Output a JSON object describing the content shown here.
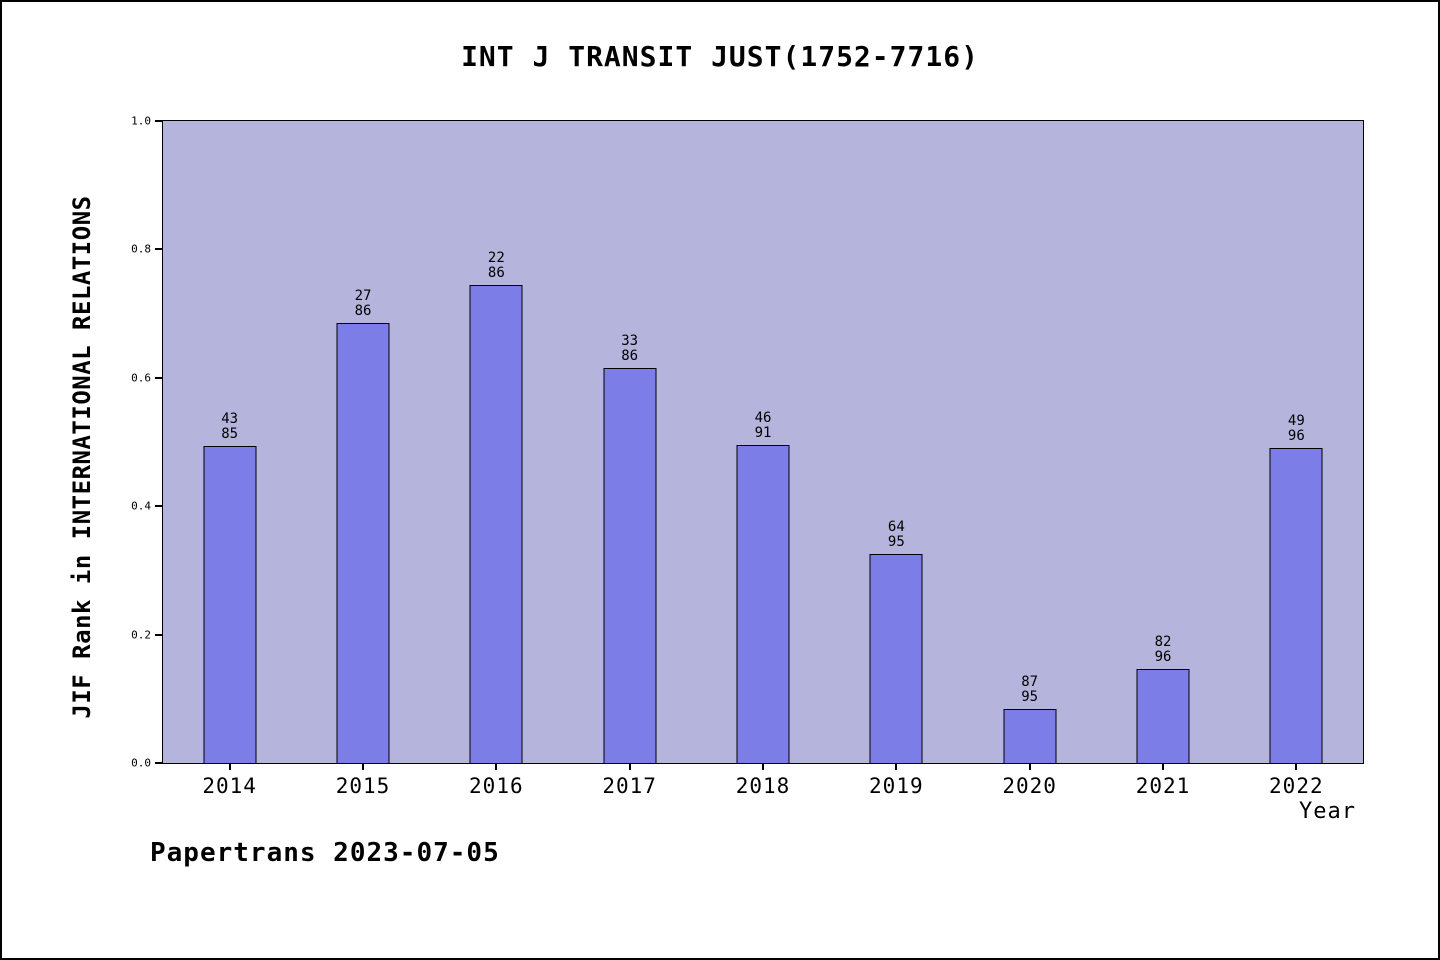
{
  "page": {
    "footer": "Papertrans 2023-07-05"
  },
  "chart_data": {
    "type": "bar",
    "title": "INT J TRANSIT JUST(1752-7716)",
    "xlabel": "Year",
    "ylabel": "JIF Rank in INTERNATIONAL RELATIONS",
    "categories": [
      "2014",
      "2015",
      "2016",
      "2017",
      "2018",
      "2019",
      "2020",
      "2021",
      "2022"
    ],
    "values": [
      0.494,
      0.686,
      0.744,
      0.616,
      0.495,
      0.326,
      0.084,
      0.146,
      0.49
    ],
    "bar_labels": [
      {
        "rank": "43",
        "total": "85"
      },
      {
        "rank": "27",
        "total": "86"
      },
      {
        "rank": "22",
        "total": "86"
      },
      {
        "rank": "33",
        "total": "86"
      },
      {
        "rank": "46",
        "total": "91"
      },
      {
        "rank": "64",
        "total": "95"
      },
      {
        "rank": "87",
        "total": "95"
      },
      {
        "rank": "82",
        "total": "96"
      },
      {
        "rank": "49",
        "total": "96"
      }
    ],
    "ylim": [
      0,
      1
    ],
    "yticks": [
      0.0,
      0.2,
      0.4,
      0.6,
      0.8,
      1.0
    ],
    "grid": false,
    "legend": null,
    "colors": {
      "plot_bg": "#b4b4dc",
      "bar_fill": "#7d7de8",
      "bar_edge": "#000000",
      "text": "#000000"
    }
  }
}
